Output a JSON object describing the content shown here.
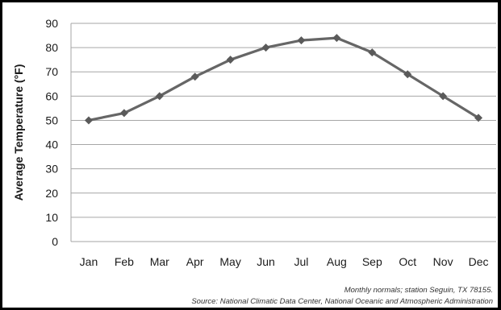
{
  "chart_data": {
    "type": "line",
    "title": "",
    "xlabel": "",
    "ylabel": "Average Temperature (°F)",
    "categories": [
      "Jan",
      "Feb",
      "Mar",
      "Apr",
      "May",
      "Jun",
      "Jul",
      "Aug",
      "Sep",
      "Oct",
      "Nov",
      "Dec"
    ],
    "values": [
      50,
      53,
      60,
      68,
      75,
      80,
      83,
      84,
      78,
      69,
      60,
      51
    ],
    "ylim": [
      0,
      90
    ],
    "yticks": [
      0,
      10,
      20,
      30,
      40,
      50,
      60,
      70,
      80,
      90
    ],
    "grid": true,
    "legend": "none",
    "colors": {
      "line": "#666666",
      "marker": "#5a5a5a",
      "grid": "#a6a6a6",
      "background": "#ffffff",
      "border": "#000000"
    },
    "annotations": [
      "Monthly normals; station Seguin, TX 78155.",
      "Source: National Climatic Data Center, National Oceanic and Atmospheric Administration"
    ]
  }
}
